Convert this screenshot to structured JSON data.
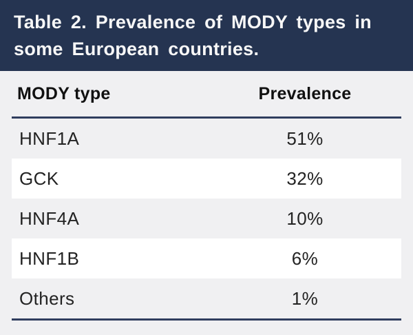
{
  "figure": {
    "caption": "Table 2. Prevalence of MODY types in some European countries.",
    "columns": [
      "MODY type",
      "Prevalence"
    ],
    "rows": [
      {
        "mody_type": "HNF1A",
        "prevalence": "51%"
      },
      {
        "mody_type": "GCK",
        "prevalence": "32%"
      },
      {
        "mody_type": "HNF4A",
        "prevalence": "10%"
      },
      {
        "mody_type": "HNF1B",
        "prevalence": "6%"
      },
      {
        "mody_type": "Others",
        "prevalence": "1%"
      }
    ]
  },
  "colors": {
    "header_navy": "#253451",
    "rule_navy": "#2f3d5e",
    "background": "#f0f0f2",
    "row_stripe_white": "#ffffff",
    "title_text": "#f7f7f7",
    "body_text": "#232323"
  },
  "chart_data": {
    "type": "table",
    "title": "Table 2. Prevalence of MODY types in some European countries.",
    "columns": [
      "MODY type",
      "Prevalence"
    ],
    "rows": [
      [
        "HNF1A",
        "51%"
      ],
      [
        "GCK",
        "32%"
      ],
      [
        "HNF4A",
        "10%"
      ],
      [
        "HNF1B",
        "6%"
      ],
      [
        "Others",
        "1%"
      ]
    ],
    "values_percent": {
      "HNF1A": 51,
      "GCK": 32,
      "HNF4A": 10,
      "HNF1B": 6,
      "Others": 1
    }
  }
}
